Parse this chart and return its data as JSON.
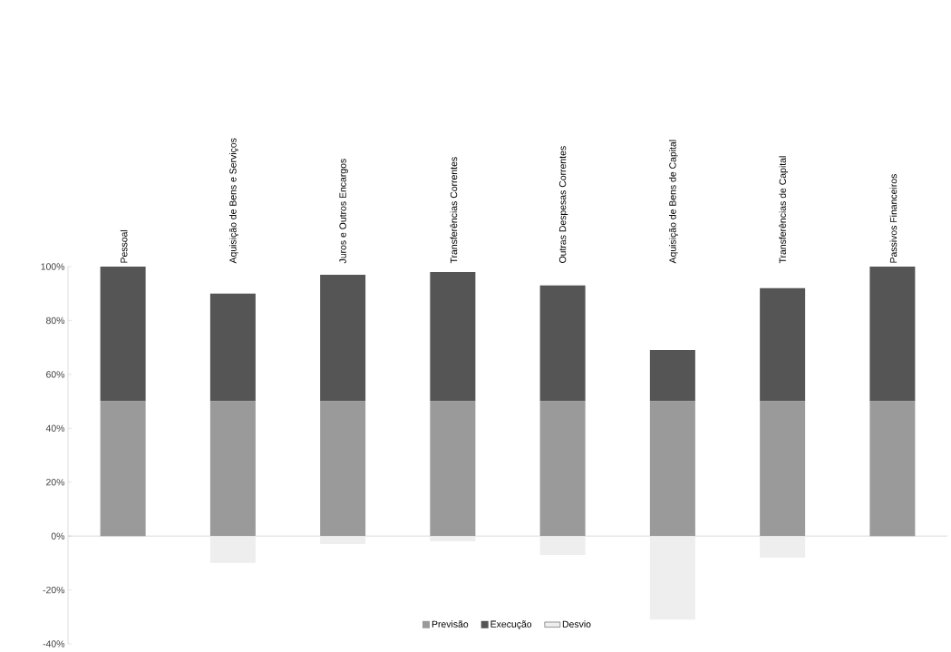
{
  "chart_data": {
    "type": "bar",
    "stacked": true,
    "categories": [
      "Pessoal",
      "Aquisição de Bens e Serviços",
      "Juros e Outros Encargos",
      "Transferências Correntes",
      "Outras Despesas Correntes",
      "Aquisição de Bens de Capital",
      "Transferências de Capital",
      "Passivos Financeiros"
    ],
    "series": [
      {
        "name": "Previsão",
        "color": "#9a9a9a",
        "values": [
          50,
          50,
          50,
          50,
          50,
          50,
          50,
          50
        ]
      },
      {
        "name": "Execução",
        "color": "#555555",
        "values": [
          50,
          40,
          47,
          48,
          43,
          19,
          42,
          50
        ]
      },
      {
        "name": "Desvio",
        "color": "#eeeeee",
        "values": [
          0,
          -10,
          -3,
          -2,
          -7,
          -31,
          -8,
          0
        ]
      }
    ],
    "ylim": [
      -40,
      100
    ],
    "yticks": [
      {
        "value": -40,
        "label": "-40%"
      },
      {
        "value": -20,
        "label": "-20%"
      },
      {
        "value": 0,
        "label": "0%"
      },
      {
        "value": 20,
        "label": "20%"
      },
      {
        "value": 40,
        "label": "40%"
      },
      {
        "value": 60,
        "label": "60%"
      },
      {
        "value": 80,
        "label": "80%"
      },
      {
        "value": 100,
        "label": "100%"
      }
    ],
    "legend": "bottom"
  }
}
